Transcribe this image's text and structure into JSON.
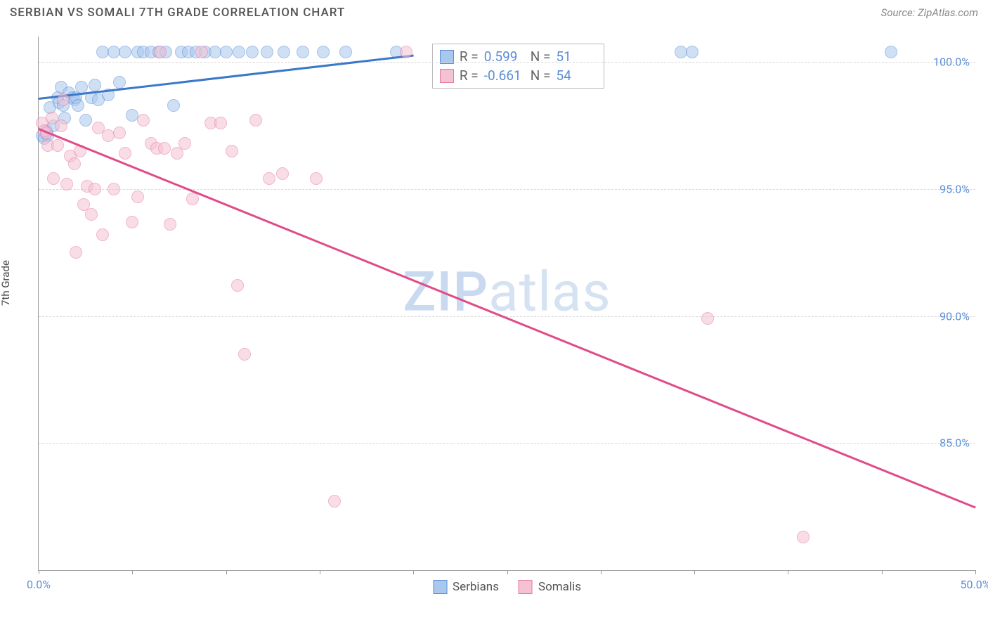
{
  "title": "SERBIAN VS SOMALI 7TH GRADE CORRELATION CHART",
  "source": "Source: ZipAtlas.com",
  "ylabel": "7th Grade",
  "watermark_zip": "ZIP",
  "watermark_rest": "atlas",
  "chart": {
    "type": "scatter",
    "xlim": [
      0,
      50
    ],
    "ylim": [
      80,
      101
    ],
    "xtick_step": 5,
    "xtick_labels": [
      {
        "x": 0,
        "label": "0.0%"
      },
      {
        "x": 50,
        "label": "50.0%"
      }
    ],
    "ytick_labels": [
      {
        "y": 100,
        "label": "100.0%"
      },
      {
        "y": 95,
        "label": "95.0%"
      },
      {
        "y": 90,
        "label": "90.0%"
      },
      {
        "y": 85,
        "label": "85.0%"
      }
    ],
    "grid_color": "#d8d8d8",
    "background_color": "#ffffff",
    "axis_color": "#999999",
    "label_color": "#5b8dd6",
    "marker_radius": 9,
    "marker_opacity": 0.55,
    "series": [
      {
        "name": "Serbians",
        "fill_color": "#a8c8ee",
        "stroke_color": "#5b8dd6",
        "line_color": "#3b78c9",
        "R": "0.599",
        "N": "51",
        "trend": {
          "x1": 0,
          "y1": 98.6,
          "x2": 20,
          "y2": 100.3
        },
        "points": [
          [
            0.2,
            97.1
          ],
          [
            0.3,
            97.0
          ],
          [
            0.4,
            97.3
          ],
          [
            0.5,
            97.1
          ],
          [
            0.6,
            98.2
          ],
          [
            0.8,
            97.5
          ],
          [
            1.0,
            98.6
          ],
          [
            1.1,
            98.4
          ],
          [
            1.2,
            99.0
          ],
          [
            1.3,
            98.3
          ],
          [
            1.4,
            97.8
          ],
          [
            1.6,
            98.8
          ],
          [
            1.8,
            98.6
          ],
          [
            1.9,
            98.5
          ],
          [
            2.0,
            98.6
          ],
          [
            2.1,
            98.3
          ],
          [
            2.3,
            99.0
          ],
          [
            2.5,
            97.7
          ],
          [
            2.8,
            98.6
          ],
          [
            3.0,
            99.1
          ],
          [
            3.2,
            98.5
          ],
          [
            3.4,
            100.4
          ],
          [
            3.7,
            98.7
          ],
          [
            4.0,
            100.4
          ],
          [
            4.3,
            99.2
          ],
          [
            4.6,
            100.4
          ],
          [
            5.0,
            97.9
          ],
          [
            5.3,
            100.4
          ],
          [
            5.6,
            100.4
          ],
          [
            6.0,
            100.4
          ],
          [
            6.4,
            100.4
          ],
          [
            6.8,
            100.4
          ],
          [
            7.2,
            98.3
          ],
          [
            7.6,
            100.4
          ],
          [
            8.0,
            100.4
          ],
          [
            8.4,
            100.4
          ],
          [
            8.9,
            100.4
          ],
          [
            9.4,
            100.4
          ],
          [
            10.0,
            100.4
          ],
          [
            10.7,
            100.4
          ],
          [
            11.4,
            100.4
          ],
          [
            12.2,
            100.4
          ],
          [
            13.1,
            100.4
          ],
          [
            14.1,
            100.4
          ],
          [
            15.2,
            100.4
          ],
          [
            16.4,
            100.4
          ],
          [
            19.1,
            100.4
          ],
          [
            34.3,
            100.4
          ],
          [
            34.9,
            100.4
          ],
          [
            45.5,
            100.4
          ]
        ]
      },
      {
        "name": "Somalis",
        "fill_color": "#f5c2d3",
        "stroke_color": "#e67aa2",
        "line_color": "#e14b87",
        "R": "-0.661",
        "N": "54",
        "trend": {
          "x1": 0,
          "y1": 97.4,
          "x2": 50,
          "y2": 82.5
        },
        "points": [
          [
            0.2,
            97.6
          ],
          [
            0.3,
            97.3
          ],
          [
            0.4,
            97.2
          ],
          [
            0.5,
            96.7
          ],
          [
            0.7,
            97.8
          ],
          [
            0.8,
            95.4
          ],
          [
            1.0,
            96.7
          ],
          [
            1.2,
            97.5
          ],
          [
            1.3,
            98.5
          ],
          [
            1.5,
            95.2
          ],
          [
            1.7,
            96.3
          ],
          [
            1.9,
            96.0
          ],
          [
            2.0,
            92.5
          ],
          [
            2.2,
            96.5
          ],
          [
            2.4,
            94.4
          ],
          [
            2.6,
            95.1
          ],
          [
            2.8,
            94.0
          ],
          [
            3.0,
            95.0
          ],
          [
            3.2,
            97.4
          ],
          [
            3.4,
            93.2
          ],
          [
            3.7,
            97.1
          ],
          [
            4.0,
            95.0
          ],
          [
            4.3,
            97.2
          ],
          [
            4.6,
            96.4
          ],
          [
            5.0,
            93.7
          ],
          [
            5.3,
            94.7
          ],
          [
            5.6,
            97.7
          ],
          [
            6.0,
            96.8
          ],
          [
            6.3,
            96.6
          ],
          [
            6.5,
            100.4
          ],
          [
            6.7,
            96.6
          ],
          [
            7.0,
            93.6
          ],
          [
            7.4,
            96.4
          ],
          [
            7.8,
            96.8
          ],
          [
            8.2,
            94.6
          ],
          [
            8.7,
            100.4
          ],
          [
            9.2,
            97.6
          ],
          [
            9.7,
            97.6
          ],
          [
            10.3,
            96.5
          ],
          [
            10.6,
            91.2
          ],
          [
            11.0,
            88.5
          ],
          [
            11.6,
            97.7
          ],
          [
            12.3,
            95.4
          ],
          [
            13.0,
            95.6
          ],
          [
            14.8,
            95.4
          ],
          [
            15.8,
            82.7
          ],
          [
            19.6,
            100.4
          ],
          [
            35.7,
            89.9
          ],
          [
            40.8,
            81.3
          ]
        ]
      }
    ],
    "stats_labels": {
      "R": "R =",
      "N": "N ="
    }
  },
  "legend": [
    "Serbians",
    "Somalis"
  ]
}
